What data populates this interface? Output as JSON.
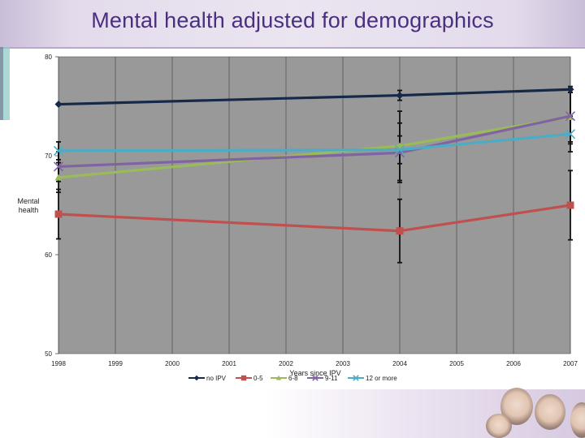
{
  "title": "Mental health adjusted for demographics",
  "chart_data": {
    "type": "line",
    "title": "",
    "xlabel": "Years since IPV",
    "ylabel": "Mental health",
    "x": [
      1998,
      1999,
      2000,
      2001,
      2002,
      2003,
      2004,
      2005,
      2006,
      2007
    ],
    "xlim": [
      1998,
      2007
    ],
    "ylim": [
      50,
      80
    ],
    "yticks": [
      50,
      60,
      70,
      80
    ],
    "grid": true,
    "legend_position": "bottom",
    "series": [
      {
        "name": "no IPV",
        "color": "#17294a",
        "marker": "diamond",
        "points": [
          [
            1998,
            75.2
          ],
          [
            2004,
            76.1
          ],
          [
            2007,
            76.7
          ]
        ],
        "errors": [
          [
            2004,
            0.5
          ],
          [
            2007,
            0.3
          ]
        ]
      },
      {
        "name": "0-5",
        "color": "#c0504d",
        "marker": "square",
        "points": [
          [
            1998,
            64.1
          ],
          [
            2004,
            62.4
          ],
          [
            2007,
            65.0
          ]
        ],
        "errors": [
          [
            1998,
            2.5
          ],
          [
            2004,
            3.2
          ],
          [
            2007,
            3.5
          ]
        ]
      },
      {
        "name": "6-8",
        "color": "#9bbb59",
        "marker": "triangle",
        "points": [
          [
            1998,
            67.8
          ],
          [
            2004,
            71.0
          ],
          [
            2007,
            73.9
          ]
        ],
        "errors": [
          [
            1998,
            1.5
          ],
          [
            2004,
            3.5
          ],
          [
            2007,
            2.5
          ]
        ]
      },
      {
        "name": "9-11",
        "color": "#8064a2",
        "marker": "x",
        "points": [
          [
            1998,
            68.9
          ],
          [
            2004,
            70.3
          ],
          [
            2007,
            74.0
          ]
        ],
        "errors": [
          [
            1998,
            1.5
          ],
          [
            2004,
            3.0
          ],
          [
            2007,
            2.8
          ]
        ]
      },
      {
        "name": "12 or more",
        "color": "#4bacc6",
        "marker": "x",
        "points": [
          [
            1998,
            70.5
          ],
          [
            2004,
            70.6
          ],
          [
            2007,
            72.2
          ]
        ],
        "errors": [
          [
            1998,
            0.9
          ],
          [
            2004,
            1.4
          ],
          [
            2007,
            1.8
          ]
        ]
      }
    ]
  }
}
